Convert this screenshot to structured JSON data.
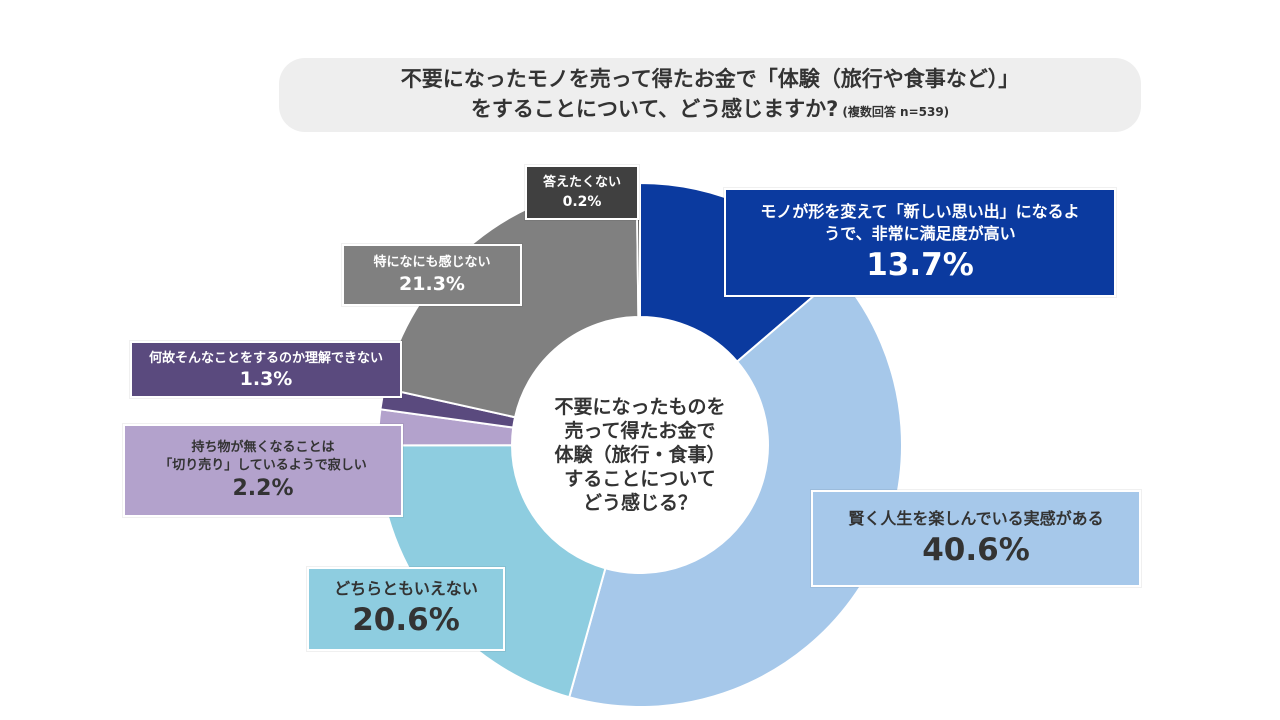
{
  "title": {
    "line1": "不要になったモノを売って得たお金で「体験（旅行や食事など）」",
    "line2": "をすることについて、どう感じますか?",
    "note": "(複数回答 n=539)"
  },
  "center_text": "不要になったものを\n売って得たお金で\n体験（旅行・食事）\nすることについて\nどう感じる？",
  "chart_data": {
    "type": "pie",
    "donut": true,
    "start_angle_deg": 0,
    "direction": "clockwise",
    "slices": [
      {
        "label": "モノが形を変えて「新しい思い出」になるようで、非常に満足度が高い",
        "label_display": "モノが形を変えて「新しい思い出」になるよ\nうで、非常に満足度が高い",
        "value": 13.7,
        "value_label": "13.7%",
        "color": "#0b3a9f"
      },
      {
        "label": "賢く人生を楽しんでいる実感がある",
        "label_display": "賢く人生を楽しんでいる実感がある",
        "value": 40.6,
        "value_label": "40.6%",
        "color": "#a6c8ea"
      },
      {
        "label": "どちらともいえない",
        "label_display": "どちらともいえない",
        "value": 20.6,
        "value_label": "20.6%",
        "color": "#8ecde0"
      },
      {
        "label": "持ち物が無くなることは「切り売り」しているようで寂しい",
        "label_display": "持ち物が無くなることは\n「切り売り」しているようで寂しい",
        "value": 2.2,
        "value_label": "2.2%",
        "color": "#b3a2cc"
      },
      {
        "label": "何故そんなことをするのか理解できない",
        "label_display": "何故そんなことをするのか理解できない",
        "value": 1.3,
        "value_label": "1.3%",
        "color": "#5a4a7e"
      },
      {
        "label": "特になにも感じない",
        "label_display": "特になにも感じない",
        "value": 21.3,
        "value_label": "21.3%",
        "color": "#808080"
      },
      {
        "label": "答えたくない",
        "label_display": "答えたくない",
        "value": 0.2,
        "value_label": "0.2%",
        "color": "#404040"
      }
    ]
  }
}
